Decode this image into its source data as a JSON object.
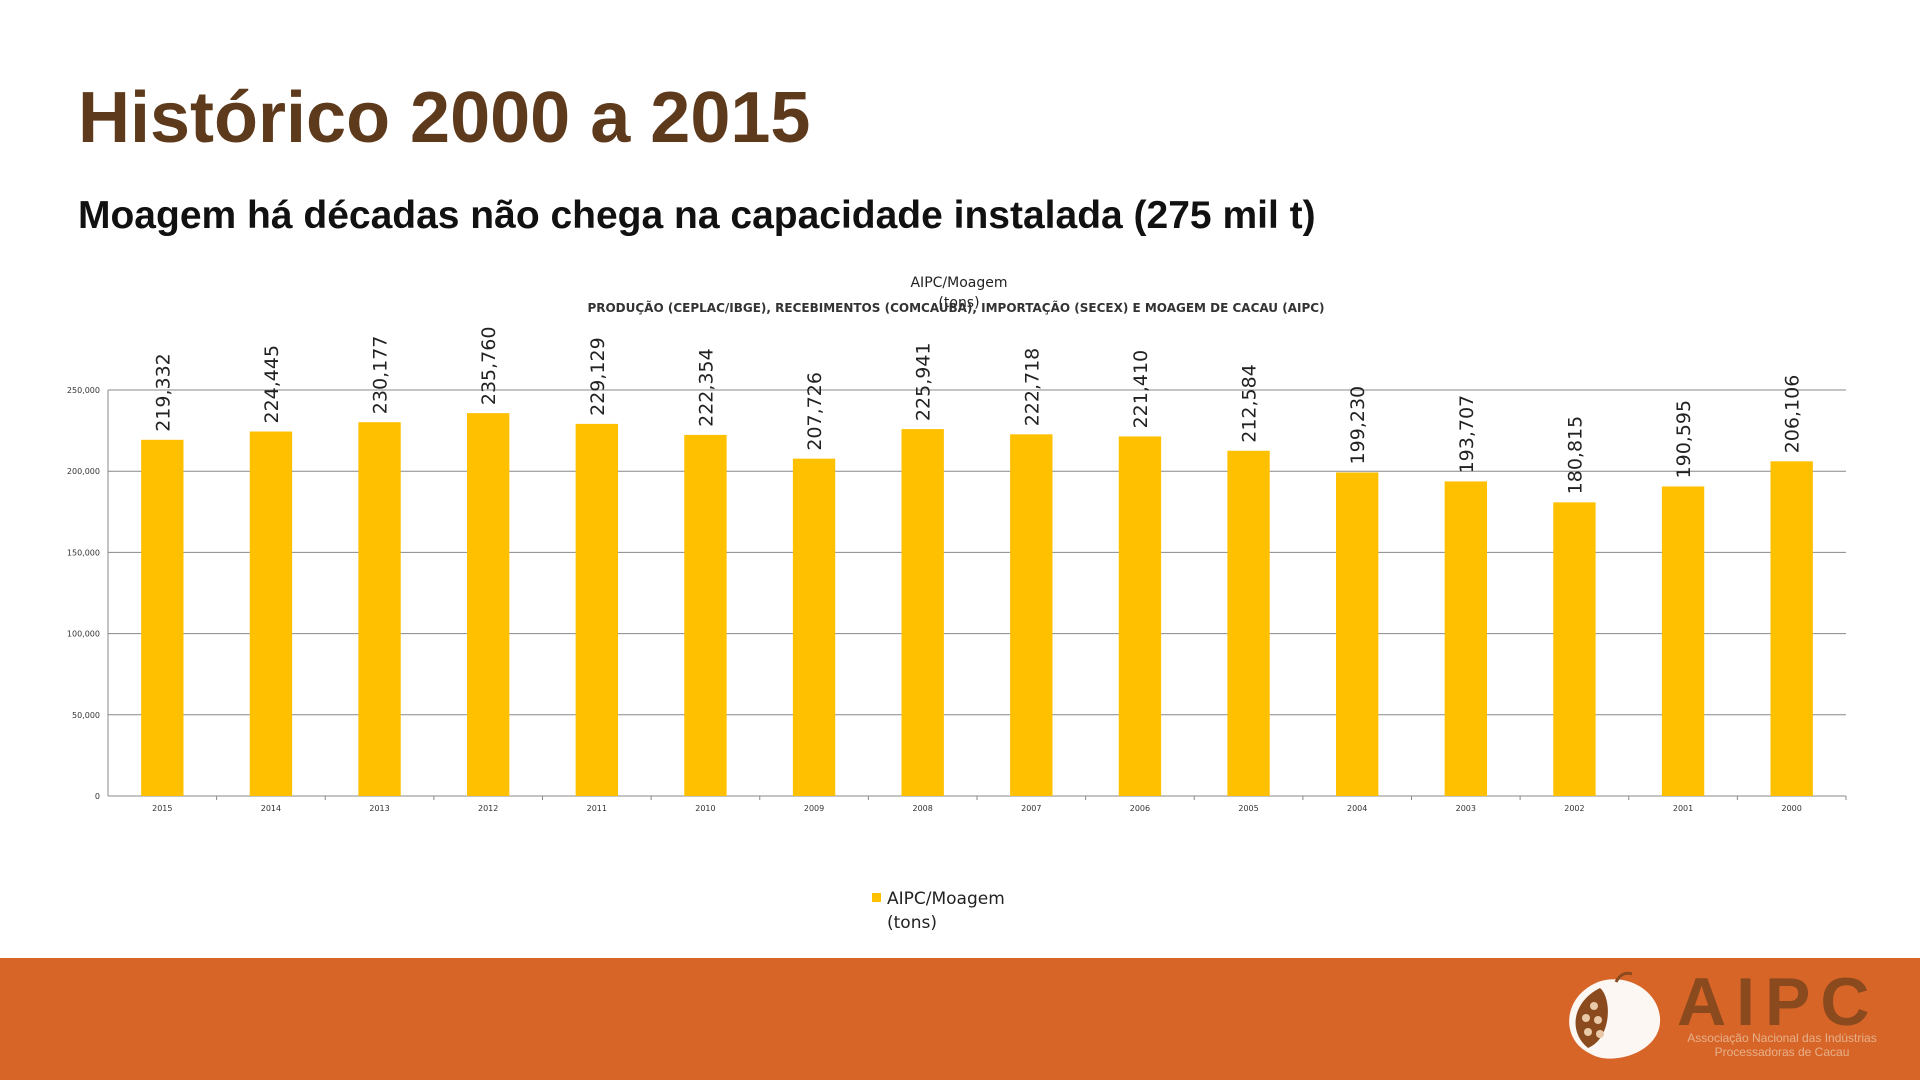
{
  "slide": {
    "title": "Histórico 2000 a 2015",
    "subtitle": "Moagem há décadas não chega na capacidade instalada (275 mil t)"
  },
  "chart_data": {
    "type": "bar",
    "title_overlay": "AIPC/Moagem",
    "title_overlay_unit": "(tons)",
    "title": "PRODUÇÃO (CEPLAC/IBGE), RECEBIMENTOS (COMCAUBA), IMPORTAÇÃO (SECEX) E MOAGEM DE CACAU (AIPC)",
    "categories": [
      "2015",
      "2014",
      "2013",
      "2012",
      "2011",
      "2010",
      "2009",
      "2008",
      "2007",
      "2006",
      "2005",
      "2004",
      "2003",
      "2002",
      "2001",
      "2000"
    ],
    "series": [
      {
        "name": "AIPC/Moagem (tons)",
        "values": [
          219332,
          224445,
          230177,
          235760,
          229129,
          222354,
          207726,
          225941,
          222718,
          221410,
          212584,
          199230,
          193707,
          180815,
          190595,
          206106
        ]
      }
    ],
    "data_labels": [
      "219,332",
      "224,445",
      "230,177",
      "235,760",
      "229,129",
      "222,354",
      "207,726",
      "225,941",
      "222,718",
      "221,410",
      "212,584",
      "199,230",
      "193,707",
      "180,815",
      "190,595",
      "206,106"
    ],
    "yticks": [
      0,
      50000,
      100000,
      150000,
      200000,
      250000
    ],
    "ytick_labels": [
      "0",
      "50,000",
      "100,000",
      "150,000",
      "200,000",
      "250,000"
    ],
    "ylim": [
      0,
      250000
    ],
    "grid": true,
    "legend": {
      "position": "bottom",
      "label": "AIPC/Moagem",
      "label_unit": "(tons)"
    },
    "colors": {
      "bar": "#ffc000",
      "grid": "#888888"
    }
  },
  "footer": {
    "logo_text": "AIPC",
    "tagline": "Associação Nacional das Indústrias Processadoras de Cacau",
    "band_color": "#d86528"
  }
}
